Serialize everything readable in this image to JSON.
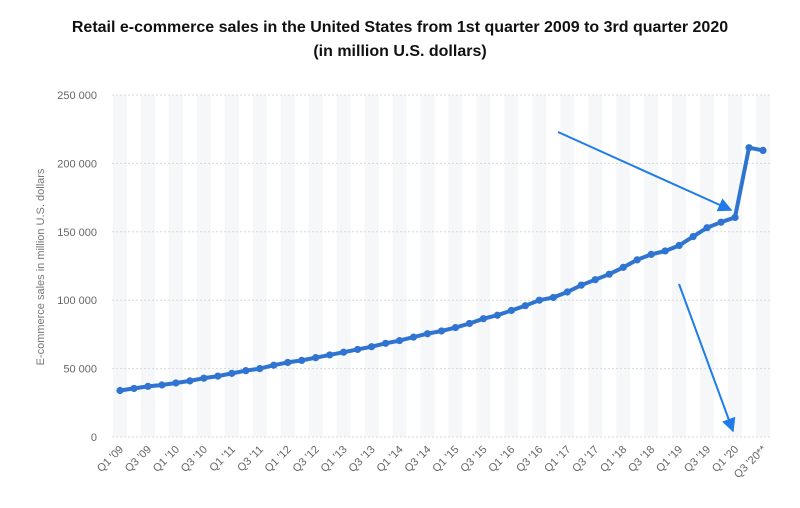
{
  "title_line1": "Retail e-commerce sales in the United States from 1st quarter 2009 to 3rd quarter 2020",
  "title_line2": "(in million U.S. dollars)",
  "chart_data": {
    "type": "line",
    "title": "Retail e-commerce sales in the United States from 1st quarter 2009 to 3rd quarter 2020 (in million U.S. dollars)",
    "xlabel": "",
    "ylabel": "E-commerce sales in million U.S. dollars",
    "ylim": [
      0,
      250000
    ],
    "yticks": [
      0,
      50000,
      100000,
      150000,
      200000,
      250000
    ],
    "ytick_labels": [
      "0",
      "50 000",
      "100 000",
      "150 000",
      "200 000",
      "250 000"
    ],
    "x_tick_labels": [
      "Q1 '09",
      "Q3 '09",
      "Q1 '10",
      "Q3 '10",
      "Q1 '11",
      "Q3 '11",
      "Q1 '12",
      "Q3 '12",
      "Q1 '13",
      "Q3 '13",
      "Q1 '14",
      "Q3 '14",
      "Q1 '15",
      "Q3 '15",
      "Q1 '16",
      "Q3 '16",
      "Q1 '17",
      "Q3 '17",
      "Q1 '18",
      "Q3 '18",
      "Q1 '19",
      "Q3 '19",
      "Q1 '20",
      "Q3 '20**"
    ],
    "grid": true,
    "line_color": "#2f74d0",
    "series": [
      {
        "values": [
          34000,
          35500,
          37000,
          38000,
          39500,
          41000,
          43000,
          44500,
          46500,
          48500,
          50000,
          52500,
          54500,
          56000,
          58000,
          60000,
          62000,
          64000,
          66000,
          68500,
          70500,
          73000,
          75500,
          77500,
          80000,
          83000,
          86500,
          89000,
          92500,
          96000,
          100000,
          102000,
          106000,
          111000,
          115000,
          119000,
          124000,
          129500,
          133500,
          136000,
          140000,
          146500,
          153000,
          157000,
          160500,
          211500,
          209500
        ]
      }
    ]
  },
  "annotations": {
    "arrow_color": "#1e7be8"
  }
}
